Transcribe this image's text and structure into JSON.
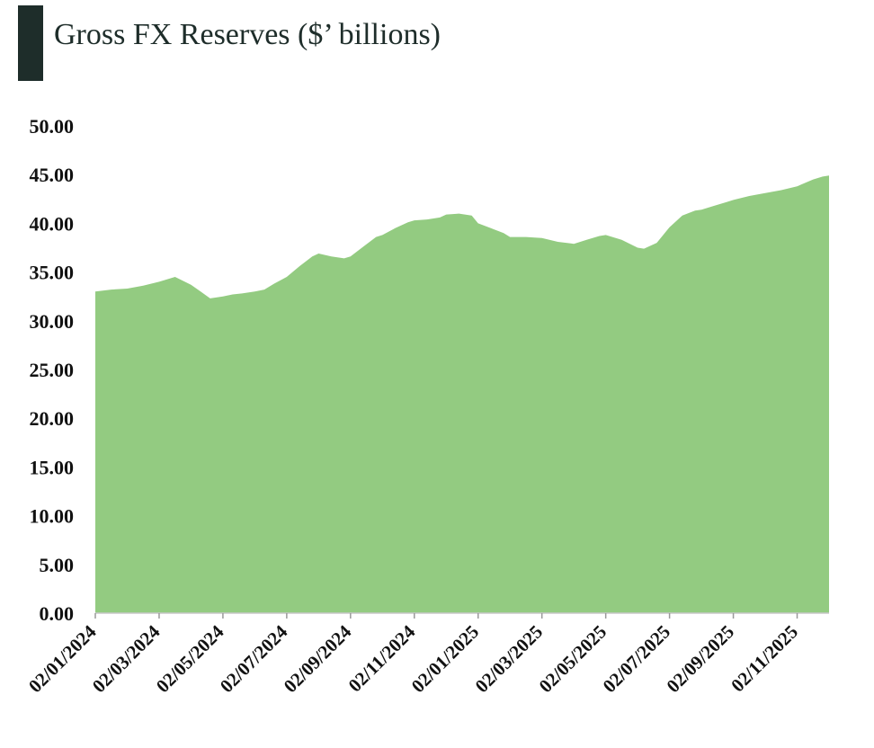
{
  "chart_data": {
    "type": "area",
    "title": "Gross FX Reserves ($’ billions)",
    "xlabel": "",
    "ylabel": "",
    "ylim": [
      0,
      50
    ],
    "yticks": [
      "0.00",
      "5.00",
      "10.00",
      "15.00",
      "20.00",
      "25.00",
      "30.00",
      "35.00",
      "40.00",
      "45.00",
      "50.00"
    ],
    "ytick_values": [
      0,
      5,
      10,
      15,
      20,
      25,
      30,
      35,
      40,
      45,
      50
    ],
    "xticks": [
      "02/01/2024",
      "02/03/2024",
      "02/05/2024",
      "02/07/2024",
      "02/09/2024",
      "02/11/2024",
      "02/01/2025",
      "02/03/2025",
      "02/05/2025",
      "02/07/2025",
      "02/09/2025",
      "02/11/2025"
    ],
    "x_month_index_range": [
      0,
      23
    ],
    "fill_color": "#93cb81",
    "series": [
      {
        "name": "Gross FX Reserves",
        "x": [
          0,
          0.5,
          1,
          1.5,
          2,
          2.5,
          3,
          3.3,
          3.6,
          4,
          4.3,
          4.6,
          5,
          5.3,
          5.6,
          6,
          6.4,
          6.8,
          7,
          7.4,
          7.8,
          8,
          8.4,
          8.8,
          9,
          9.4,
          9.8,
          10,
          10.4,
          10.8,
          11,
          11.4,
          11.8,
          12,
          12.4,
          12.8,
          13,
          13.5,
          14,
          14.5,
          15,
          15.4,
          15.8,
          16,
          16.5,
          17,
          17.2,
          17.6,
          18,
          18.4,
          18.8,
          19,
          19.4,
          19.8,
          20,
          20.5,
          21,
          21.5,
          22,
          22.5,
          22.8,
          23
        ],
        "values": [
          33.0,
          33.2,
          33.3,
          33.6,
          34.0,
          34.5,
          33.7,
          33.0,
          32.3,
          32.5,
          32.7,
          32.8,
          33.0,
          33.2,
          33.8,
          34.5,
          35.6,
          36.6,
          36.9,
          36.6,
          36.4,
          36.6,
          37.6,
          38.6,
          38.8,
          39.5,
          40.1,
          40.3,
          40.4,
          40.6,
          40.9,
          41.0,
          40.8,
          40.0,
          39.5,
          39.0,
          38.6,
          38.6,
          38.5,
          38.1,
          37.9,
          38.3,
          38.7,
          38.8,
          38.3,
          37.5,
          37.4,
          38.0,
          39.6,
          40.8,
          41.3,
          41.4,
          41.8,
          42.2,
          42.4,
          42.8,
          43.1,
          43.4,
          43.8,
          44.5,
          44.8,
          44.9
        ]
      }
    ]
  }
}
